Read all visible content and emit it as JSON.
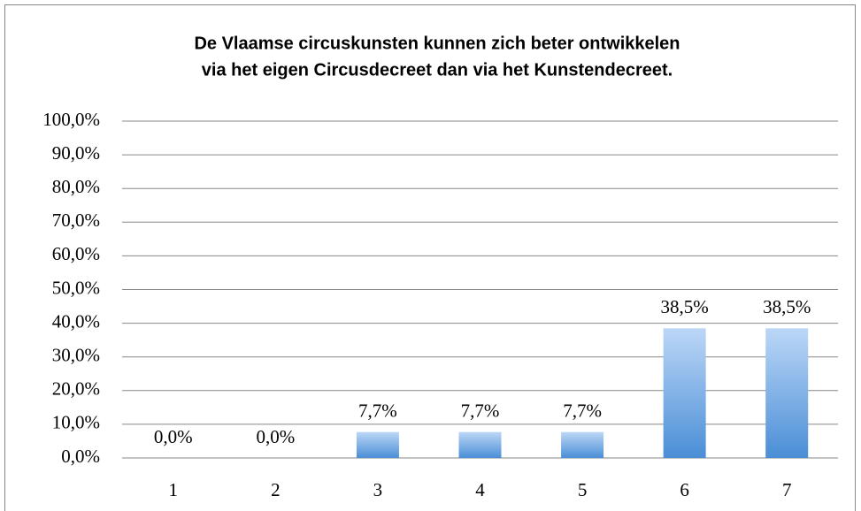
{
  "chart_data": {
    "type": "bar",
    "title": [
      "De Vlaamse circuskunsten kunnen zich beter ontwikkelen",
      "via het eigen Circusdecreet dan via het Kunstendecreet."
    ],
    "categories": [
      "1",
      "2",
      "3",
      "4",
      "5",
      "6",
      "7"
    ],
    "values": [
      0,
      0,
      7.7,
      7.7,
      7.7,
      38.5,
      38.5
    ],
    "value_labels": [
      "0,0%",
      "0,0%",
      "7,7%",
      "7,7%",
      "7,7%",
      "38,5%",
      "38,5%"
    ],
    "gradient": [
      "#bcd7f7",
      "#4a8ed6"
    ],
    "ylim": [
      0,
      100
    ],
    "yticks": [
      {
        "value": 0,
        "label": "0,0%"
      },
      {
        "value": 10,
        "label": "10,0%"
      },
      {
        "value": 20,
        "label": "20,0%"
      },
      {
        "value": 30,
        "label": "30,0%"
      },
      {
        "value": 40,
        "label": "40,0%"
      },
      {
        "value": 50,
        "label": "50,0%"
      },
      {
        "value": 60,
        "label": "60,0%"
      },
      {
        "value": 70,
        "label": "70,0%"
      },
      {
        "value": 80,
        "label": "80,0%"
      },
      {
        "value": 90,
        "label": "90,0%"
      },
      {
        "value": 100,
        "label": "100,0%"
      }
    ],
    "grid": true
  }
}
